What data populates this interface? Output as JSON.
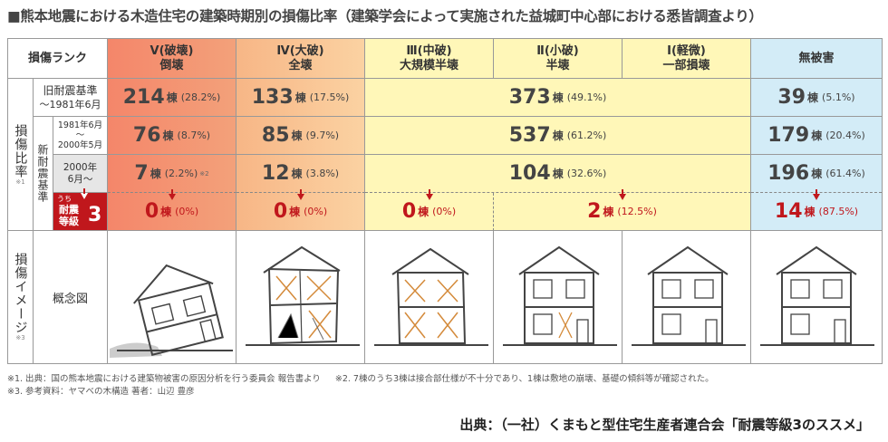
{
  "title": "■熊本地震における木造住宅の建築時期別の損傷比率（建築学会によって実施された益城町中心部における悉皆調査より）",
  "header": {
    "rank_label": "損傷ランク",
    "cols": [
      {
        "l1": "Ⅴ(破壊)",
        "l2": "倒壊"
      },
      {
        "l1": "Ⅳ(大破)",
        "l2": "全壊"
      },
      {
        "l1": "Ⅲ(中破)",
        "l2": "大規模半壊"
      },
      {
        "l1": "Ⅱ(小破)",
        "l2": "半壊"
      },
      {
        "l1": "Ⅰ(軽微)",
        "l2": "一部損壊"
      },
      {
        "l1": "無被害",
        "l2": ""
      }
    ]
  },
  "side": {
    "damage_ratio": "損傷比率",
    "damage_ratio_note": "※1",
    "image_label": "損傷イメージ",
    "image_note": "※3",
    "gainen": "概念図",
    "old_l1": "旧耐震基準",
    "old_l2": "〜1981年6月",
    "new_label": "新耐震基準",
    "new1_l1": "1981年6月",
    "new1_l2": "〜",
    "new1_l3": "2000年5月",
    "new2_l1": "2000年",
    "new2_l2": "6月〜",
    "uchi": "うち",
    "grade_l1": "耐震",
    "grade_l2": "等級",
    "grade_num": "3"
  },
  "rows": {
    "old": {
      "c5": {
        "n": "214",
        "u": "棟",
        "p": "(28.2%)"
      },
      "c4": {
        "n": "133",
        "u": "棟",
        "p": "(17.5%)"
      },
      "mid": {
        "n": "373",
        "u": "棟",
        "p": "(49.1%)"
      },
      "none": {
        "n": "39",
        "u": "棟",
        "p": "(5.1%)"
      }
    },
    "new1": {
      "c5": {
        "n": "76",
        "u": "棟",
        "p": "(8.7%)"
      },
      "c4": {
        "n": "85",
        "u": "棟",
        "p": "(9.7%)"
      },
      "mid": {
        "n": "537",
        "u": "棟",
        "p": "(61.2%)"
      },
      "none": {
        "n": "179",
        "u": "棟",
        "p": "(20.4%)"
      }
    },
    "new2": {
      "c5": {
        "n": "7",
        "u": "棟",
        "p": "(2.2%)",
        "note": "※2"
      },
      "c4": {
        "n": "12",
        "u": "棟",
        "p": "(3.8%)"
      },
      "mid": {
        "n": "104",
        "u": "棟",
        "p": "(32.6%)"
      },
      "none": {
        "n": "196",
        "u": "棟",
        "p": "(61.4%)"
      }
    },
    "grade3": {
      "c5": {
        "n": "0",
        "u": "棟",
        "p": "(0%)"
      },
      "c4": {
        "n": "0",
        "u": "棟",
        "p": "(0%)"
      },
      "c3": {
        "n": "0",
        "u": "棟",
        "p": "(0%)"
      },
      "c21": {
        "n": "2",
        "u": "棟",
        "p": "(12.5%)"
      },
      "none": {
        "n": "14",
        "u": "棟",
        "p": "(87.5%)"
      }
    }
  },
  "notes": {
    "n1": "※1. 出典：国の熊本地震における建築物被害の原因分析を行う委員会 報告書より",
    "n2": "※2. 7棟のうち3棟は接合部仕様が不十分であり、1棟は敷地の崩壊、基礎の傾斜等が確認された。",
    "n3": "※3. 参考資料：ヤマベの木構造 著者：山辺 豊彦"
  },
  "source": "出典：（一社）くまもと型住宅生産者連合会「耐震等級3のススメ」",
  "colors": {
    "accent_red": "#c0171c",
    "col5": "#f4866a",
    "col4": "#fbd2a2",
    "yellow": "#fff7b8",
    "blue": "#d3ecf7"
  }
}
